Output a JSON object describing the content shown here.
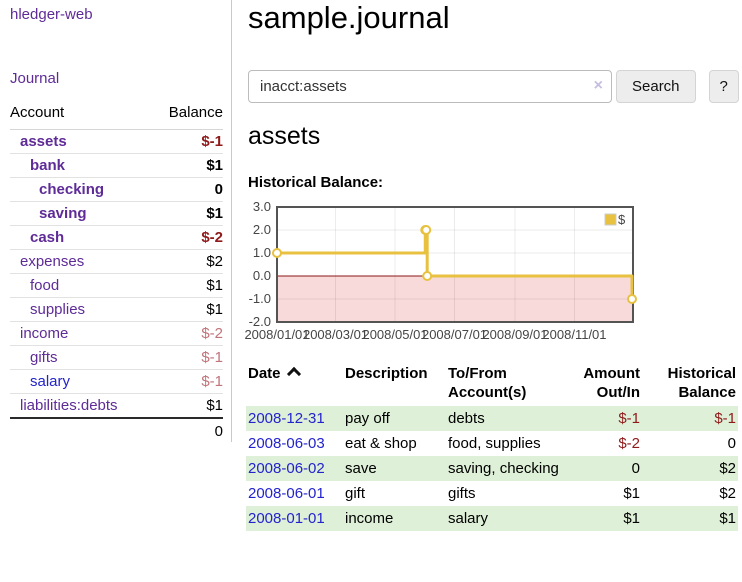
{
  "brand": "hledger-web",
  "nav": {
    "journal": "Journal"
  },
  "sidebar": {
    "header": {
      "account": "Account",
      "balance": "Balance"
    },
    "accounts": [
      {
        "name": "assets",
        "indent": 1,
        "bold": true,
        "balance": "$-1",
        "tone": "neg-strong"
      },
      {
        "name": "bank",
        "indent": 2,
        "bold": true,
        "balance": "$1",
        "tone": "normal"
      },
      {
        "name": "checking",
        "indent": 3,
        "bold": true,
        "balance": "0",
        "tone": "normal"
      },
      {
        "name": "saving",
        "indent": 3,
        "bold": true,
        "balance": "$1",
        "tone": "normal"
      },
      {
        "name": "cash",
        "indent": 2,
        "bold": true,
        "balance": "$-2",
        "tone": "neg-strong"
      },
      {
        "name": "expenses",
        "indent": 1,
        "bold": false,
        "balance": "$2",
        "tone": "normal"
      },
      {
        "name": "food",
        "indent": 2,
        "bold": false,
        "balance": "$1",
        "tone": "normal"
      },
      {
        "name": "supplies",
        "indent": 2,
        "bold": false,
        "balance": "$1",
        "tone": "normal"
      },
      {
        "name": "income",
        "indent": 1,
        "bold": false,
        "balance": "$-2",
        "tone": "neg-soft"
      },
      {
        "name": "gifts",
        "indent": 2,
        "bold": false,
        "balance": "$-1",
        "tone": "neg-soft"
      },
      {
        "name": "salary",
        "indent": 2,
        "bold": false,
        "balance": "$-1",
        "tone": "neg-soft",
        "fresh": true
      },
      {
        "name": "liabilities:debts",
        "indent": 1,
        "bold": false,
        "balance": "$1",
        "tone": "normal"
      }
    ],
    "total": "0"
  },
  "page": {
    "title": "sample.journal"
  },
  "search": {
    "value": "inacct:assets",
    "clear": "×",
    "submit": "Search",
    "help": "?"
  },
  "account_view": {
    "heading": "assets",
    "chart_title": "Historical Balance:"
  },
  "chart_data": {
    "type": "line",
    "step": true,
    "title": "Historical Balance",
    "x": [
      "2008-01-01",
      "2008-06-01",
      "2008-06-02",
      "2008-06-03",
      "2008-12-31"
    ],
    "series": [
      {
        "name": "$",
        "color": "#e8c140",
        "values": [
          1,
          2,
          2,
          0,
          -1
        ]
      }
    ],
    "ylim": [
      -2,
      3
    ],
    "yticks": [
      "3.0",
      "2.0",
      "1.0",
      "0.0",
      "-1.0",
      "-2.0"
    ],
    "xticks": [
      "2008/01/01",
      "2008/03/01",
      "2008/05/01",
      "2008/07/01",
      "2008/09/01",
      "2008/11/01"
    ],
    "xrange": [
      "2008-01-01",
      "2008-12-31"
    ],
    "legend_position": "top-right",
    "grid": true,
    "negative_fill": "#f9dada",
    "zero_line_color": "#8c1717",
    "border_color": "#545454"
  },
  "register": {
    "headers": [
      {
        "l1": "Date",
        "l2": "",
        "sort": "asc"
      },
      {
        "l1": "Description",
        "l2": ""
      },
      {
        "l1": "To/From",
        "l2": "Account(s)"
      },
      {
        "l1": "Amount",
        "l2": "Out/In"
      },
      {
        "l1": "Historical",
        "l2": "Balance"
      }
    ],
    "rows": [
      {
        "date": "2008-12-31",
        "description": "pay off",
        "accounts": "debts",
        "amount": "$-1",
        "balance": "$-1"
      },
      {
        "date": "2008-06-03",
        "description": "eat & shop",
        "accounts": "food, supplies",
        "amount": "$-2",
        "balance": "0"
      },
      {
        "date": "2008-06-02",
        "description": "save",
        "accounts": "saving, checking",
        "amount": "0",
        "balance": "$2"
      },
      {
        "date": "2008-06-01",
        "description": "gift",
        "accounts": "gifts",
        "amount": "$1",
        "balance": "$2"
      },
      {
        "date": "2008-01-01",
        "description": "income",
        "accounts": "salary",
        "amount": "$1",
        "balance": "$1"
      }
    ]
  },
  "colors": {
    "link": "#2323cc",
    "link_visited": "#5e2b97",
    "negative_strong": "#8f1a1a",
    "negative_soft": "#c0737a",
    "row_highlight": "#dff0d8",
    "chart_line": "#e8c140"
  }
}
